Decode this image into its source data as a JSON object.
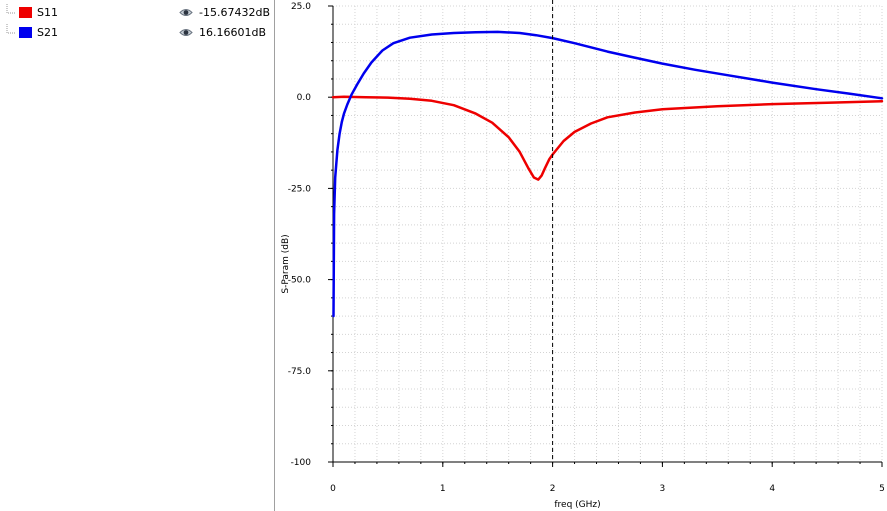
{
  "legend": {
    "items": [
      {
        "name": "S11",
        "color": "#ee0000",
        "value": "-15.67432dB"
      },
      {
        "name": "S21",
        "color": "#0000ee",
        "value": "16.16601dB"
      }
    ]
  },
  "chart_data": {
    "type": "line",
    "xlabel": "freq (GHz)",
    "ylabel": "S-Param (dB)",
    "xlim": [
      0,
      5
    ],
    "ylim": [
      -100,
      25
    ],
    "x_ticks": [
      0,
      1,
      2,
      3,
      4,
      5
    ],
    "x_tick_labels": [
      "0",
      "1",
      "2",
      "3",
      "4",
      "5"
    ],
    "y_ticks": [
      25,
      0,
      -25,
      -50,
      -75,
      -100
    ],
    "y_tick_labels": [
      "25.0",
      "0.0",
      "-25.0",
      "-50.0",
      "-75.0",
      "-100"
    ],
    "grid": true,
    "marker_x": 2.0,
    "series": [
      {
        "name": "S11",
        "color": "#ee0000",
        "x": [
          0.0,
          0.1,
          0.3,
          0.5,
          0.7,
          0.9,
          1.1,
          1.3,
          1.45,
          1.6,
          1.7,
          1.78,
          1.83,
          1.87,
          1.9,
          1.93,
          1.97,
          2.0,
          2.1,
          2.2,
          2.35,
          2.5,
          2.75,
          3.0,
          3.5,
          4.0,
          4.5,
          5.0
        ],
        "values": [
          0.0,
          0.1,
          0.0,
          -0.1,
          -0.4,
          -1.0,
          -2.2,
          -4.5,
          -7.0,
          -11.0,
          -15.0,
          -19.5,
          -22.0,
          -22.6,
          -21.5,
          -19.5,
          -17.0,
          -15.7,
          -12.0,
          -9.5,
          -7.2,
          -5.5,
          -4.2,
          -3.3,
          -2.5,
          -1.9,
          -1.5,
          -1.1
        ]
      },
      {
        "name": "S21",
        "color": "#0000ee",
        "x": [
          0.005,
          0.01,
          0.02,
          0.04,
          0.06,
          0.08,
          0.1,
          0.13,
          0.17,
          0.22,
          0.28,
          0.35,
          0.45,
          0.55,
          0.7,
          0.9,
          1.1,
          1.3,
          1.5,
          1.7,
          1.85,
          2.0,
          2.2,
          2.5,
          2.8,
          3.0,
          3.3,
          3.6,
          4.0,
          4.4,
          4.7,
          5.0
        ],
        "values": [
          -60.0,
          -32.0,
          -22.0,
          -14.5,
          -10.0,
          -6.8,
          -4.5,
          -2.0,
          0.8,
          3.5,
          6.5,
          9.5,
          12.8,
          14.8,
          16.3,
          17.2,
          17.6,
          17.8,
          17.9,
          17.6,
          17.0,
          16.2,
          14.8,
          12.5,
          10.5,
          9.2,
          7.5,
          6.0,
          4.0,
          2.2,
          1.0,
          -0.3
        ]
      }
    ]
  }
}
